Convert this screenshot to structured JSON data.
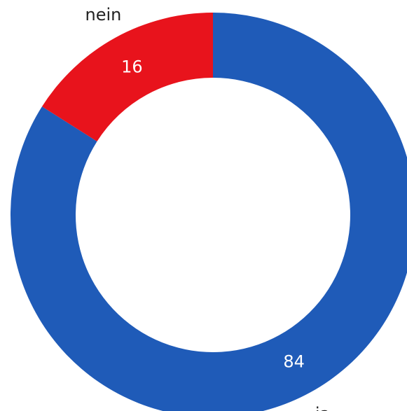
{
  "chart_data": {
    "type": "donut",
    "categories": [
      "ja",
      "nein"
    ],
    "values": [
      84,
      16
    ],
    "colors": [
      "#1f5bb8",
      "#e8131c"
    ]
  }
}
